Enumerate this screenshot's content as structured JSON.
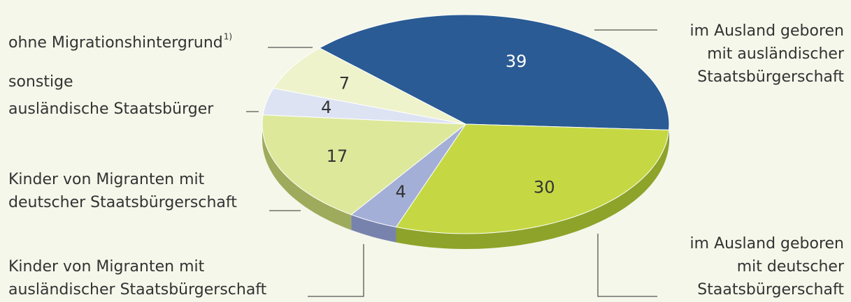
{
  "chart_data": {
    "type": "pie3d",
    "categories": [
      [
        "im Ausland geboren",
        "mit ausländischer",
        "Staatsbürgerschaft"
      ],
      [
        "im Ausland geboren",
        "mit deutscher",
        "Staatsbürgerschaft"
      ],
      [
        "Kinder von Migranten mit",
        "ausländischer Staatsbürgerschaft"
      ],
      [
        "Kinder von Migranten mit",
        "deutscher Staatsbürgerschaft"
      ],
      [
        "sonstige",
        "ausländische Staatsbürger"
      ],
      [
        "ohne Migrationshintergrund"
      ]
    ],
    "note_marker": "1)",
    "values": [
      39,
      30,
      4,
      17,
      4,
      7
    ],
    "colors": [
      "#2a5b94",
      "#c5d843",
      "#a3afd6",
      "#dde89a",
      "#dde3f3",
      "#eef3cc"
    ],
    "side_colors": [
      "#1d426e",
      "#8ea32a",
      "#7883ad",
      "#9fab5c",
      "#a9b0c6",
      "#b7bd92"
    ]
  }
}
